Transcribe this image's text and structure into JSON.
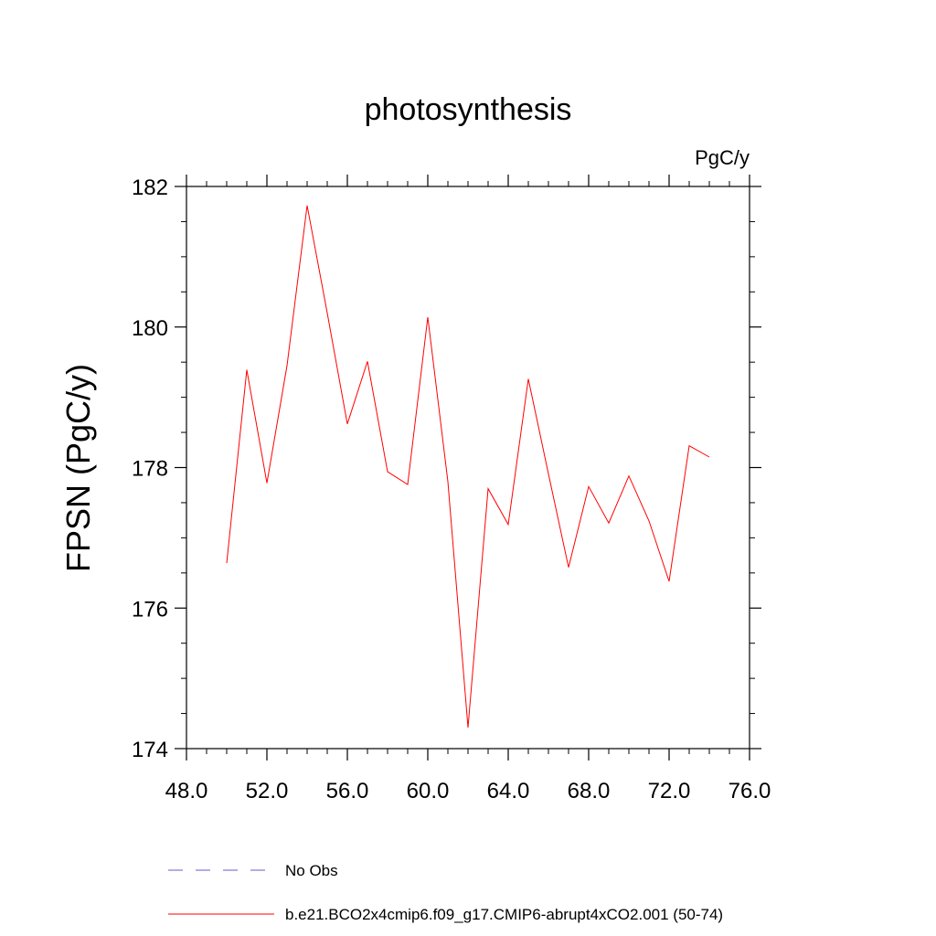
{
  "chart_data": {
    "type": "line",
    "title": "photosynthesis",
    "units": "PgC/y",
    "ylabel": "FPSN  (PgC/y)",
    "xlabel": "",
    "xlim": [
      48.0,
      76.0
    ],
    "ylim": [
      174,
      182
    ],
    "x_ticks": [
      "48.0",
      "52.0",
      "56.0",
      "60.0",
      "64.0",
      "68.0",
      "72.0",
      "76.0"
    ],
    "y_ticks": [
      "174",
      "176",
      "178",
      "180",
      "182"
    ],
    "grid": false,
    "legend_position": "bottom",
    "legend": [
      {
        "label": "No Obs",
        "color": "#6a5acd",
        "style": "dashed"
      },
      {
        "label": "b.e21.BCO2x4cmip6.f09_g17.CMIP6-abrupt4xCO2.001 (50-74)",
        "color": "#ff0000",
        "style": "solid"
      }
    ],
    "series": [
      {
        "name": "b.e21.BCO2x4cmip6.f09_g17.CMIP6-abrupt4xCO2.001 (50-74)",
        "color": "#ff0000",
        "x": [
          50,
          51,
          52,
          53,
          54,
          55,
          56,
          57,
          58,
          59,
          60,
          61,
          62,
          63,
          64,
          65,
          66,
          67,
          68,
          69,
          70,
          71,
          72,
          73,
          74
        ],
        "y": [
          176.64,
          179.39,
          177.78,
          179.45,
          181.73,
          180.2,
          178.62,
          179.51,
          177.94,
          177.76,
          180.14,
          177.8,
          174.3,
          177.7,
          177.19,
          179.26,
          177.91,
          176.58,
          177.73,
          177.21,
          177.88,
          177.24,
          176.38,
          178.31,
          178.15
        ]
      }
    ]
  }
}
